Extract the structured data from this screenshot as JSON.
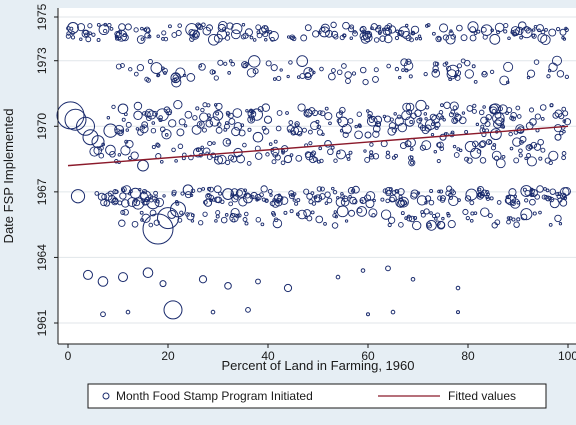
{
  "chart_data": {
    "type": "scatter",
    "xlabel": "Percent of Land in Farming, 1960",
    "ylabel": "Date FSP Implemented",
    "xlim": [
      0,
      100
    ],
    "ylim": [
      1961,
      1975
    ],
    "x_ticks": [
      "0",
      "20",
      "40",
      "60",
      "80",
      "100"
    ],
    "y_ticks": [
      "1961",
      "1964",
      "1967",
      "1970",
      "1973",
      "1975"
    ],
    "grid": "horizontal",
    "legend_position": "bottom",
    "series": [
      {
        "name": "Month Food Stamp Program Initiated",
        "marker": "hollow-circle",
        "color": "#1a2b6d",
        "note_weighting": "marker size weighted",
        "points": [
          [
            0.5,
            1970.5,
            4.5
          ],
          [
            1.5,
            1970.3,
            3.5
          ],
          [
            3.5,
            1970.0,
            3.0
          ],
          [
            4.5,
            1969.5,
            2.5
          ],
          [
            1.0,
            1974.5,
            1.8
          ],
          [
            2.0,
            1966.8,
            2.2
          ],
          [
            6.0,
            1969.3,
            2.0
          ],
          [
            8.5,
            1969.8,
            2.2
          ],
          [
            11,
            1970.8,
            1.6
          ],
          [
            14,
            1970.5,
            1.4
          ],
          [
            15,
            1968.2,
            1.8
          ],
          [
            17,
            1966.5,
            2.0
          ],
          [
            18,
            1965.3,
            5.0
          ],
          [
            20,
            1965.8,
            3.5
          ],
          [
            21,
            1961.6,
            3.0
          ],
          [
            22,
            1966.2,
            2.5
          ],
          [
            24,
            1967.1,
            1.6
          ],
          [
            26,
            1968.8,
            1.5
          ],
          [
            28,
            1966.5,
            1.2
          ],
          [
            30,
            1970.5,
            1.6
          ],
          [
            32,
            1966.9,
            1.8
          ],
          [
            34,
            1968.8,
            1.4
          ],
          [
            36,
            1966.7,
            1.5
          ],
          [
            38,
            1969.5,
            1.6
          ],
          [
            40,
            1970.3,
            1.2
          ],
          [
            42,
            1966.7,
            1.3
          ],
          [
            44,
            1968.5,
            1.2
          ],
          [
            46,
            1969.8,
            1.4
          ],
          [
            48,
            1970.6,
            1.3
          ],
          [
            50,
            1966.7,
            1.2
          ],
          [
            52,
            1969.2,
            1.1
          ],
          [
            55,
            1970.2,
            1.6
          ],
          [
            57,
            1966.6,
            1.1
          ],
          [
            60,
            1969.6,
            1.0
          ],
          [
            62,
            1970.3,
            1.2
          ],
          [
            65,
            1966.7,
            1.1
          ],
          [
            68,
            1969.2,
            1.0
          ],
          [
            70,
            1970.6,
            1.1
          ],
          [
            72,
            1966.7,
            0.9
          ],
          [
            75,
            1969.5,
            1.0
          ],
          [
            78,
            1970.4,
            1.1
          ],
          [
            80,
            1966.7,
            0.9
          ],
          [
            83,
            1969.2,
            1.0
          ],
          [
            86,
            1970.5,
            1.0
          ],
          [
            88,
            1966.6,
            0.9
          ],
          [
            91,
            1969.4,
            1.0
          ],
          [
            93,
            1970.2,
            1.1
          ],
          [
            96,
            1966.7,
            0.8
          ],
          [
            98,
            1969.5,
            1.0
          ],
          [
            99,
            1974.3,
            1.0
          ],
          [
            4,
            1963.2,
            1.5
          ],
          [
            7,
            1962.9,
            1.6
          ],
          [
            11,
            1963.1,
            1.5
          ],
          [
            16,
            1963.3,
            1.6
          ],
          [
            19,
            1962.8,
            1.0
          ],
          [
            27,
            1963.0,
            1.2
          ],
          [
            32,
            1962.7,
            1.1
          ],
          [
            38,
            1962.9,
            0.8
          ],
          [
            44,
            1962.6,
            1.2
          ],
          [
            54,
            1963.1,
            0.6
          ],
          [
            59,
            1963.4,
            0.6
          ],
          [
            64,
            1963.5,
            0.8
          ],
          [
            69,
            1963.0,
            0.6
          ],
          [
            78,
            1962.6,
            0.6
          ],
          [
            7,
            1961.4,
            0.8
          ],
          [
            12,
            1961.5,
            0.6
          ],
          [
            29,
            1961.5,
            0.6
          ],
          [
            36,
            1961.6,
            0.8
          ],
          [
            60,
            1961.4,
            0.5
          ],
          [
            65,
            1961.5,
            0.6
          ],
          [
            78,
            1961.5,
            0.5
          ]
        ]
      },
      {
        "name": "Fitted values",
        "marker": "line",
        "color": "#8b1a2b",
        "points": [
          [
            0,
            1968.2
          ],
          [
            100,
            1970.0
          ]
        ]
      }
    ]
  }
}
